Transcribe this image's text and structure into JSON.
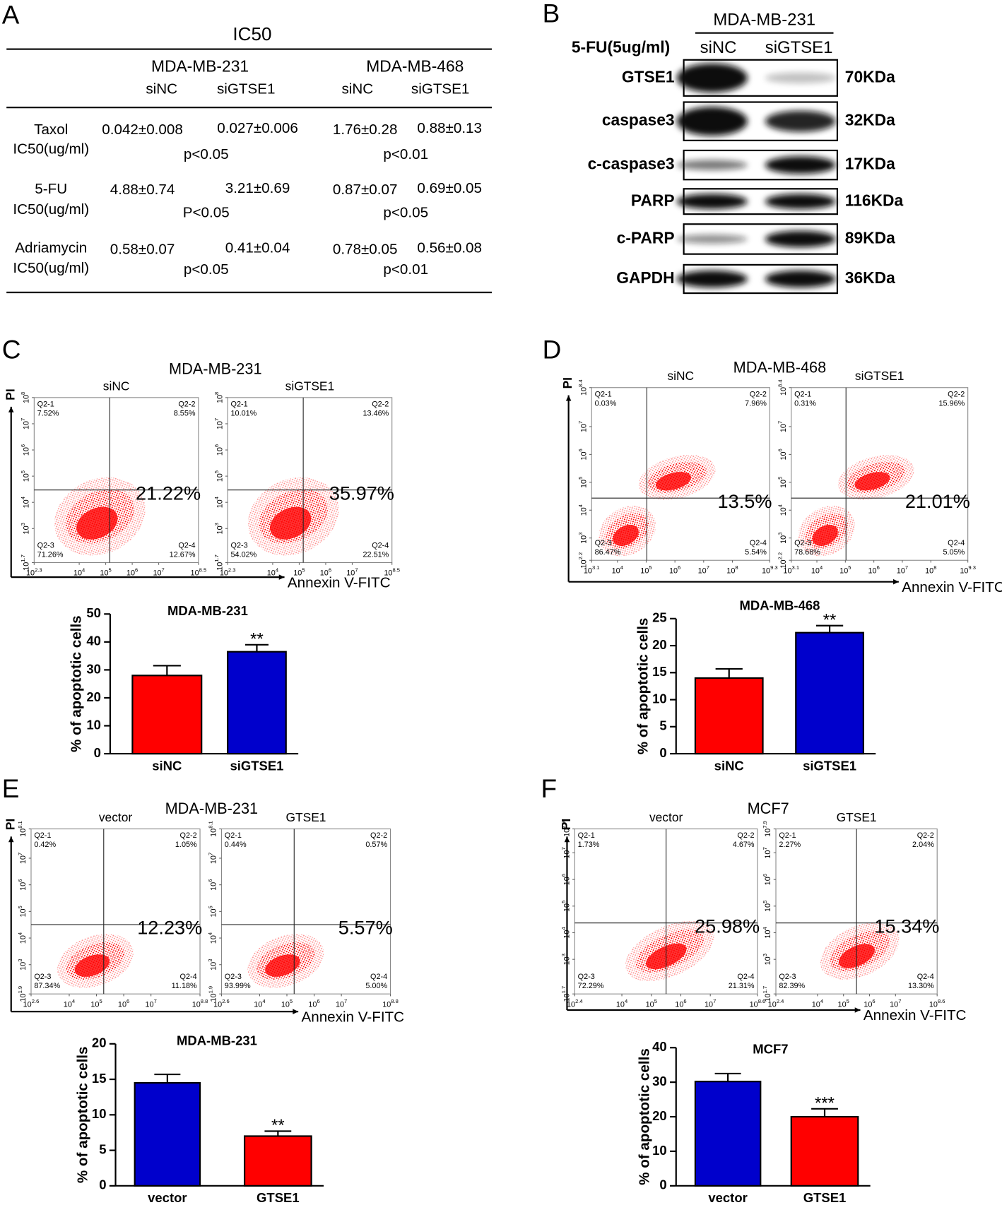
{
  "panel_labels": [
    "A",
    "B",
    "C",
    "D",
    "E",
    "F"
  ],
  "table": {
    "title": "IC50",
    "groups": [
      "MDA-MB-231",
      "MDA-MB-468"
    ],
    "columns": [
      "siNC",
      "siGTSE1",
      "siNC",
      "siGTSE1"
    ],
    "rows": [
      {
        "drug": "Taxol",
        "unit": "IC50(ug/ml)",
        "values": [
          "0.042±0.008",
          "0.027±0.006",
          "1.76±0.28",
          "0.88±0.13"
        ],
        "p": [
          "p<0.05",
          "p<0.01"
        ]
      },
      {
        "drug": "5-FU",
        "unit": "IC50(ug/ml)",
        "values": [
          "4.88±0.74",
          "3.21±0.69",
          "0.87±0.07",
          "0.69±0.05"
        ],
        "p": [
          "P<0.05",
          "p<0.05"
        ]
      },
      {
        "drug": "Adriamycin",
        "unit": "IC50(ug/ml)",
        "values": [
          "0.58±0.07",
          "0.41±0.04",
          "0.78±0.05",
          "0.56±0.08"
        ],
        "p": [
          "p<0.05",
          "p<0.01"
        ]
      }
    ]
  },
  "blot": {
    "group": "MDA-MB-231",
    "treatment": "5-FU(5ug/ml)",
    "lanes": [
      "siNC",
      "siGTSE1"
    ],
    "rows": [
      {
        "protein": "GTSE1",
        "size": "70KDa"
      },
      {
        "protein": "caspase3",
        "size": "32KDa"
      },
      {
        "protein": "c-caspase3",
        "size": "17KDa"
      },
      {
        "protein": "PARP",
        "size": "116KDa"
      },
      {
        "protein": "c-PARP",
        "size": "89KDa"
      },
      {
        "protein": "GAPDH",
        "size": "36KDa"
      }
    ]
  },
  "flows": [
    {
      "title": "MDA-MB-231",
      "ylabel": "PI",
      "xlabel": "Annexin V-FITC",
      "tick_base": "10",
      "plots": [
        {
          "name": "siNC",
          "quadrants": [
            {
              "name": "Q2-1",
              "value": "7.52%"
            },
            {
              "name": "Q2-2",
              "value": "8.55%"
            },
            {
              "name": "Q2-3",
              "value": "71.26%"
            },
            {
              "name": "Q2-4",
              "value": "12.67%"
            }
          ],
          "apoptosis": "21.22%",
          "xlim": [
            2.3,
            8.5
          ],
          "xticks": [
            2.3,
            4,
            5,
            6,
            7,
            8.5
          ],
          "ylim": [
            1.7,
            8
          ],
          "yticks": [
            1.7,
            3,
            4,
            5,
            6,
            7,
            8
          ]
        },
        {
          "name": "siGTSE1",
          "quadrants": [
            {
              "name": "Q2-1",
              "value": "10.01%"
            },
            {
              "name": "Q2-2",
              "value": "13.46%"
            },
            {
              "name": "Q2-3",
              "value": "54.02%"
            },
            {
              "name": "Q2-4",
              "value": "22.51%"
            }
          ],
          "apoptosis": "35.97%",
          "xlim": [
            2.3,
            8.5
          ],
          "xticks": [
            2.3,
            4,
            5,
            6,
            7,
            8.5
          ],
          "ylim": [
            1.7,
            8
          ],
          "yticks": [
            1.7,
            3,
            4,
            5,
            6,
            7,
            8
          ]
        }
      ]
    },
    {
      "title": "MDA-MB-468",
      "ylabel": "PI",
      "xlabel": "Annexin V-FITC",
      "tick_base": "10",
      "plots": [
        {
          "name": "siNC",
          "quadrants": [
            {
              "name": "Q2-1",
              "value": "0.03%"
            },
            {
              "name": "Q2-2",
              "value": "7.96%"
            },
            {
              "name": "Q2-3",
              "value": "86.47%"
            },
            {
              "name": "Q2-4",
              "value": "5.54%"
            }
          ],
          "apoptosis": "13.5%",
          "xlim": [
            3.1,
            9.3
          ],
          "xticks": [
            3.1,
            4,
            5,
            6,
            7,
            8,
            9.3
          ],
          "ylim": [
            2.2,
            8.4
          ],
          "yticks": [
            2.2,
            3,
            4,
            5,
            6,
            7,
            8.4
          ]
        },
        {
          "name": "siGTSE1",
          "quadrants": [
            {
              "name": "Q2-1",
              "value": "0.31%"
            },
            {
              "name": "Q2-2",
              "value": "15.96%"
            },
            {
              "name": "Q2-3",
              "value": "78.68%"
            },
            {
              "name": "Q2-4",
              "value": "5.05%"
            }
          ],
          "apoptosis": "21.01%",
          "xlim": [
            3.1,
            9.3
          ],
          "xticks": [
            3.1,
            4,
            5,
            6,
            7,
            8,
            9.3
          ],
          "ylim": [
            2.2,
            8.4
          ],
          "yticks": [
            2.2,
            3,
            4,
            5,
            6,
            7,
            8.4
          ]
        }
      ]
    },
    {
      "title": "MDA-MB-231",
      "ylabel": "PI",
      "xlabel": "Annexin V-FITC",
      "tick_base": "10",
      "plots": [
        {
          "name": "vector",
          "quadrants": [
            {
              "name": "Q2-1",
              "value": "0.42%"
            },
            {
              "name": "Q2-2",
              "value": "1.05%"
            },
            {
              "name": "Q2-3",
              "value": "87.34%"
            },
            {
              "name": "Q2-4",
              "value": "11.18%"
            }
          ],
          "apoptosis": "12.23%",
          "xlim": [
            2.6,
            8.8
          ],
          "xticks": [
            2.6,
            4,
            5,
            6,
            7,
            8.8
          ],
          "ylim": [
            1.9,
            8.1
          ],
          "yticks": [
            1.9,
            3,
            4,
            5,
            6,
            7,
            8.1
          ]
        },
        {
          "name": "GTSE1",
          "quadrants": [
            {
              "name": "Q2-1",
              "value": "0.44%"
            },
            {
              "name": "Q2-2",
              "value": "0.57%"
            },
            {
              "name": "Q2-3",
              "value": "93.99%"
            },
            {
              "name": "Q2-4",
              "value": "5.00%"
            }
          ],
          "apoptosis": "5.57%",
          "xlim": [
            2.6,
            8.8
          ],
          "xticks": [
            2.6,
            4,
            5,
            6,
            7,
            8.8
          ],
          "ylim": [
            1.9,
            8.1
          ],
          "yticks": [
            1.9,
            3,
            4,
            5,
            6,
            7,
            8.1
          ]
        }
      ]
    },
    {
      "title": "MCF7",
      "ylabel": "PI",
      "xlabel": "Annexin V-FITC",
      "tick_base": "10",
      "plots": [
        {
          "name": "vector",
          "quadrants": [
            {
              "name": "Q2-1",
              "value": "1.73%"
            },
            {
              "name": "Q2-2",
              "value": "4.67%"
            },
            {
              "name": "Q2-3",
              "value": "72.29%"
            },
            {
              "name": "Q2-4",
              "value": "21.31%"
            }
          ],
          "apoptosis": "25.98%",
          "xlim": [
            2.4,
            8.6
          ],
          "xticks": [
            2.4,
            4,
            5,
            6,
            7,
            8.6
          ],
          "ylim": [
            1.7,
            7.9
          ],
          "yticks": [
            1.7,
            3,
            4,
            5,
            6,
            7,
            7.9
          ]
        },
        {
          "name": "GTSE1",
          "quadrants": [
            {
              "name": "Q2-1",
              "value": "2.27%"
            },
            {
              "name": "Q2-2",
              "value": "2.04%"
            },
            {
              "name": "Q2-3",
              "value": "82.39%"
            },
            {
              "name": "Q2-4",
              "value": "13.30%"
            }
          ],
          "apoptosis": "15.34%",
          "xlim": [
            2.4,
            8.6
          ],
          "xticks": [
            2.4,
            4,
            5,
            6,
            7,
            8.6
          ],
          "ylim": [
            1.7,
            7.9
          ],
          "yticks": [
            1.7,
            3,
            4,
            5,
            6,
            7,
            7.9
          ]
        }
      ]
    }
  ],
  "chart_data": [
    {
      "type": "bar",
      "title": "MDA-MB-231",
      "ylabel": "% of apoptotic cells",
      "categories": [
        "siNC",
        "siGTSE1"
      ],
      "values": [
        28,
        36.5
      ],
      "errors": [
        3.5,
        2.5
      ],
      "colors": [
        "#ff0000",
        "#0000cc"
      ],
      "annotations": [
        null,
        "**"
      ],
      "ylim": [
        0,
        50
      ],
      "yticks": [
        0,
        10,
        20,
        30,
        40,
        50
      ]
    },
    {
      "type": "bar",
      "title": "MDA-MB-468",
      "ylabel": "% of apoptotic cells",
      "categories": [
        "siNC",
        "siGTSE1"
      ],
      "values": [
        14,
        22.4
      ],
      "errors": [
        1.7,
        1.3
      ],
      "colors": [
        "#ff0000",
        "#0000cc"
      ],
      "annotations": [
        null,
        "**"
      ],
      "ylim": [
        0,
        25
      ],
      "yticks": [
        0,
        5,
        10,
        15,
        20,
        25
      ]
    },
    {
      "type": "bar",
      "title": "MDA-MB-231",
      "ylabel": "% of apoptotic cells",
      "categories": [
        "vector",
        "GTSE1"
      ],
      "values": [
        14.5,
        7
      ],
      "errors": [
        1.2,
        0.7
      ],
      "colors": [
        "#0000cc",
        "#ff0000"
      ],
      "annotations": [
        null,
        "**"
      ],
      "ylim": [
        0,
        20
      ],
      "yticks": [
        0,
        5,
        10,
        15,
        20
      ]
    },
    {
      "type": "bar",
      "title": "MCF7",
      "ylabel": "% of apoptotic cells",
      "categories": [
        "vector",
        "GTSE1"
      ],
      "values": [
        30.2,
        20
      ],
      "errors": [
        2.3,
        2.3
      ],
      "colors": [
        "#0000cc",
        "#ff0000"
      ],
      "annotations": [
        null,
        "***"
      ],
      "ylim": [
        0,
        40
      ],
      "yticks": [
        0,
        10,
        20,
        30,
        40
      ]
    }
  ]
}
